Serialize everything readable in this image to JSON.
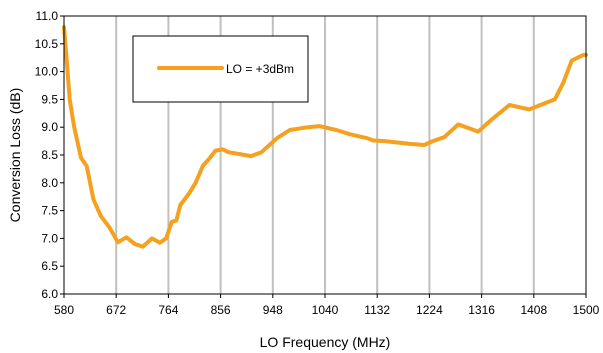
{
  "chart_data": {
    "type": "line",
    "title": "",
    "xlabel": "LO Frequency (MHz)",
    "ylabel": "Conversion Loss (dB)",
    "xlim": [
      580,
      1500
    ],
    "ylim": [
      6.0,
      11.0
    ],
    "x_ticks": [
      580,
      672,
      764,
      856,
      948,
      1040,
      1132,
      1224,
      1316,
      1408,
      1500
    ],
    "y_ticks": [
      "6.0",
      "6.5",
      "7.0",
      "7.5",
      "8.0",
      "8.5",
      "9.0",
      "9.5",
      "10.0",
      "10.5",
      "11.0"
    ],
    "grid": "vertical",
    "legend_position": "top-left",
    "colors": {
      "line": "#f5a01f",
      "grid": "#c0c0c0",
      "axis": "#000000"
    },
    "series": [
      {
        "name": "LO = +3dBm",
        "x": [
          580,
          584,
          590,
          598,
          610,
          620,
          632,
          645,
          660,
          675,
          690,
          705,
          719,
          735,
          749,
          760,
          770,
          778,
          785,
          800,
          812,
          825,
          835,
          847,
          860,
          870,
          887,
          910,
          928,
          955,
          978,
          1010,
          1030,
          1060,
          1082,
          1115,
          1125,
          1145,
          1190,
          1215,
          1230,
          1250,
          1275,
          1310,
          1335,
          1365,
          1400,
          1445,
          1460,
          1475,
          1495,
          1500
        ],
        "y": [
          10.8,
          10.3,
          9.5,
          9.0,
          8.45,
          8.3,
          7.7,
          7.4,
          7.2,
          6.93,
          7.02,
          6.9,
          6.85,
          7.0,
          6.92,
          7.0,
          7.3,
          7.32,
          7.6,
          7.8,
          8.0,
          8.31,
          8.42,
          8.58,
          8.6,
          8.55,
          8.52,
          8.48,
          8.55,
          8.8,
          8.95,
          9.0,
          9.02,
          8.95,
          8.88,
          8.8,
          8.76,
          8.75,
          8.7,
          8.68,
          8.75,
          8.82,
          9.05,
          8.92,
          9.15,
          9.4,
          9.32,
          9.5,
          9.8,
          10.2,
          10.3,
          10.3
        ]
      }
    ]
  }
}
